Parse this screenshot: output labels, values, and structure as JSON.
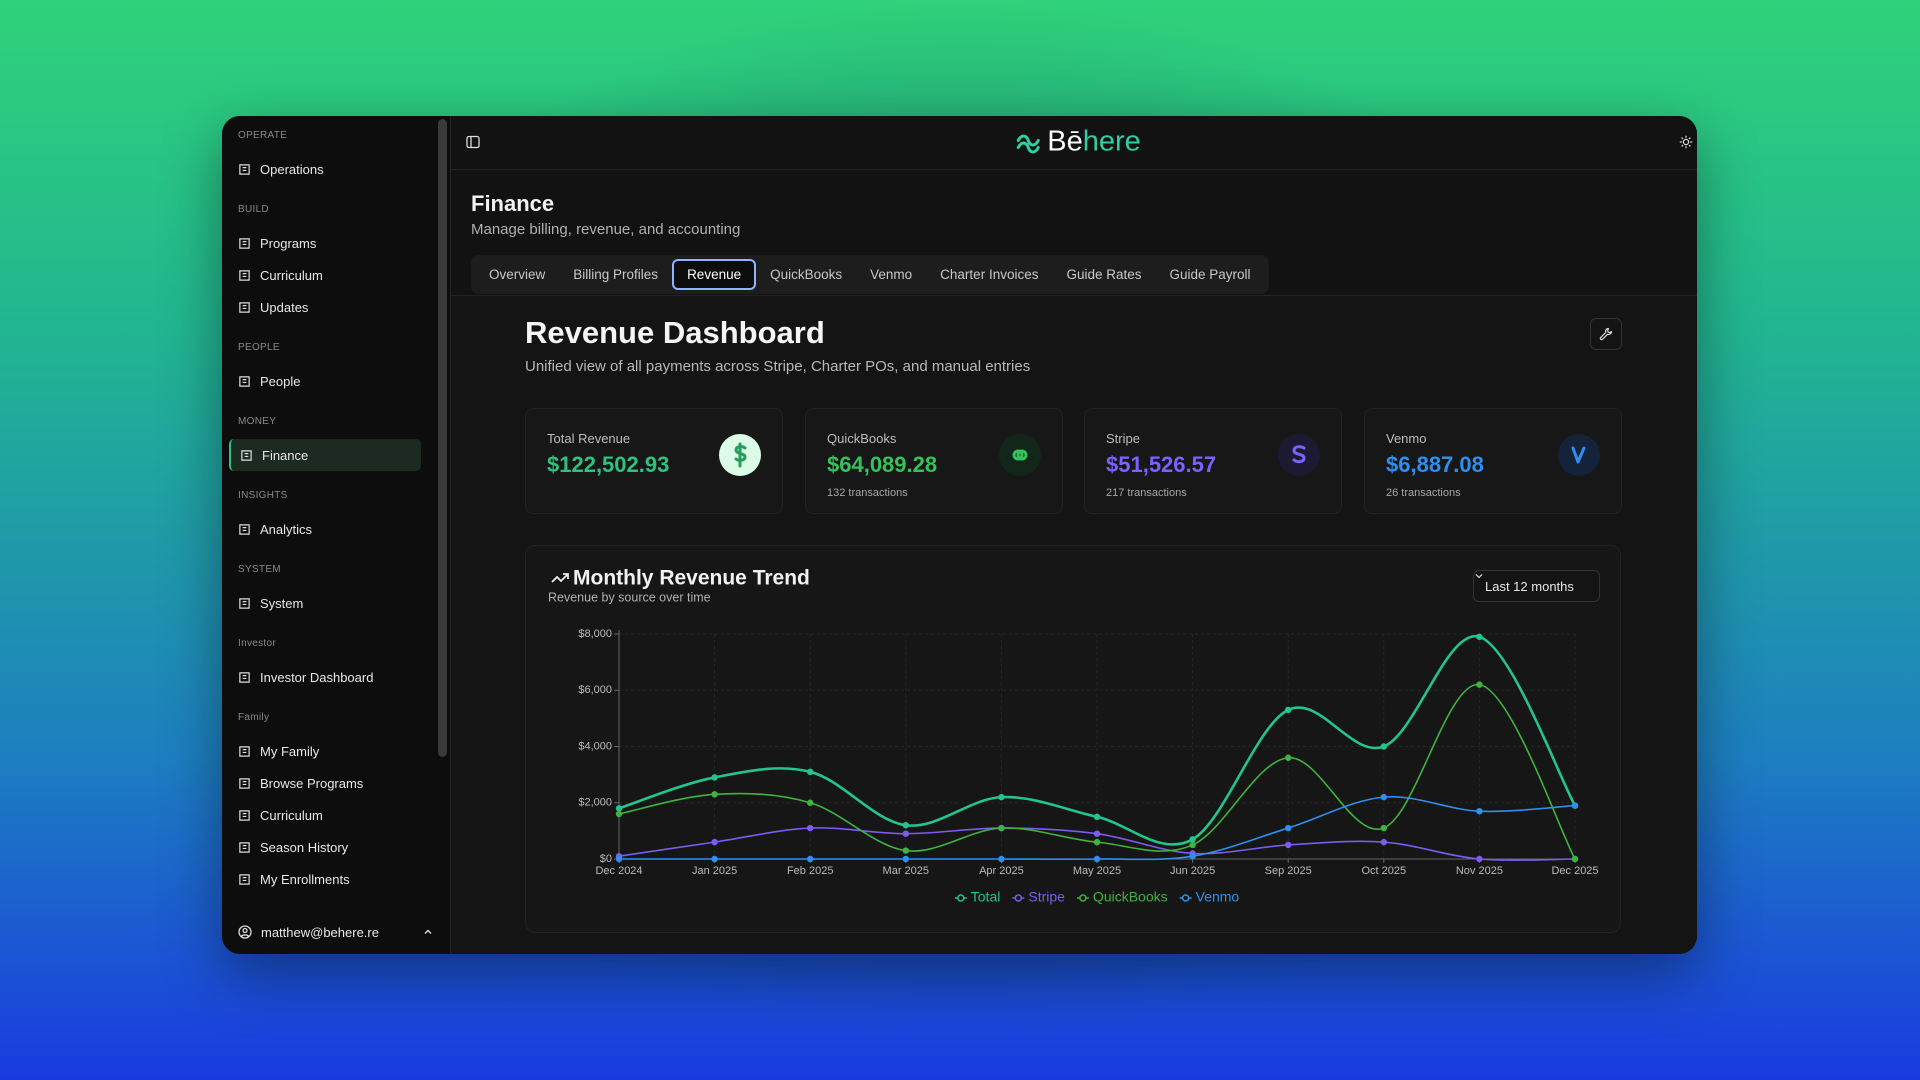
{
  "brand": "Bēhere",
  "sidebar": {
    "sections": [
      {
        "heading": "OPERATE",
        "items": [
          "Operations"
        ]
      },
      {
        "heading": "BUILD",
        "items": [
          "Programs",
          "Curriculum",
          "Updates"
        ]
      },
      {
        "heading": "PEOPLE",
        "items": [
          "People"
        ]
      },
      {
        "heading": "MONEY",
        "items": [
          "Finance"
        ]
      },
      {
        "heading": "INSIGHTS",
        "items": [
          "Analytics"
        ]
      },
      {
        "heading": "SYSTEM",
        "items": [
          "System"
        ]
      },
      {
        "heading": "Investor",
        "items": [
          "Investor Dashboard"
        ]
      },
      {
        "heading": "Family",
        "items": [
          "My Family",
          "Browse Programs",
          "Curriculum",
          "Season History",
          "My Enrollments"
        ]
      }
    ],
    "user": "matthew@behere.re"
  },
  "page": {
    "title": "Finance",
    "subtitle": "Manage billing, revenue, and accounting"
  },
  "tabs": [
    "Overview",
    "Billing Profiles",
    "Revenue",
    "QuickBooks",
    "Venmo",
    "Charter Invoices",
    "Guide Rates",
    "Guide Payroll"
  ],
  "dashboard": {
    "title": "Revenue Dashboard",
    "subtitle": "Unified view of all payments across Stripe, Charter POs, and manual entries",
    "cards": [
      {
        "label": "Total Revenue",
        "value": "$122,502.93",
        "color": "#2ec27e"
      },
      {
        "label": "QuickBooks",
        "value": "$64,089.28",
        "note": "132 transactions",
        "color": "#35c25a"
      },
      {
        "label": "Stripe",
        "value": "$51,526.57",
        "note": "217 transactions",
        "color": "#7b61ff"
      },
      {
        "label": "Venmo",
        "value": "$6,887.08",
        "note": "26 transactions",
        "color": "#2f8ff0"
      }
    ],
    "range": "Last 12 months"
  },
  "chart_data": {
    "type": "line",
    "title": "Monthly Revenue Trend",
    "subtitle": "Revenue by source over time",
    "categories": [
      "Dec 2024",
      "Jan 2025",
      "Feb 2025",
      "Mar 2025",
      "Apr 2025",
      "May 2025",
      "Jun 2025",
      "Sep 2025",
      "Oct 2025",
      "Nov 2025",
      "Dec 2025"
    ],
    "series": [
      {
        "name": "Total",
        "color": "#22c58b",
        "values": [
          1800,
          2900,
          3100,
          1200,
          2200,
          1500,
          700,
          5300,
          4000,
          7900,
          1900
        ]
      },
      {
        "name": "Stripe",
        "color": "#7c5cf0",
        "values": [
          100,
          600,
          1100,
          900,
          1100,
          900,
          200,
          500,
          600,
          0,
          0
        ]
      },
      {
        "name": "QuickBooks",
        "color": "#3fb33f",
        "values": [
          1600,
          2300,
          2000,
          300,
          1100,
          600,
          500,
          3600,
          1100,
          6200,
          0
        ]
      },
      {
        "name": "Venmo",
        "color": "#2f8ff0",
        "values": [
          0,
          0,
          0,
          0,
          0,
          0,
          100,
          1100,
          2200,
          1700,
          1900
        ]
      }
    ],
    "ylim": [
      0,
      8000
    ],
    "yticks": [
      {
        "value": 0,
        "label": "$0"
      },
      {
        "value": 2000,
        "label": "$2,000"
      },
      {
        "value": 4000,
        "label": "$4,000"
      },
      {
        "value": 6000,
        "label": "$6,000"
      },
      {
        "value": 8000,
        "label": "$8,000"
      }
    ],
    "grid": true,
    "legend": "bottom"
  }
}
